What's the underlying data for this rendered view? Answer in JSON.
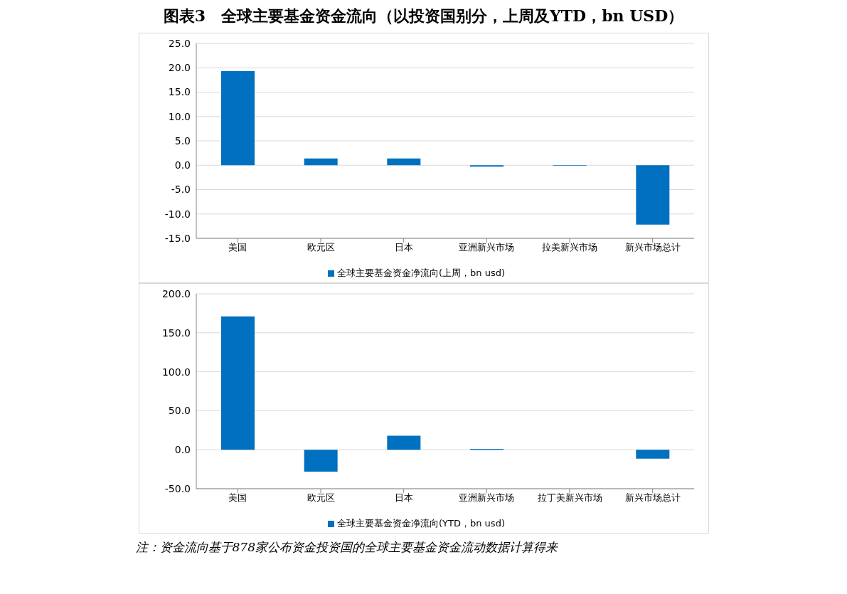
{
  "chart_data": [
    {
      "type": "bar",
      "title": "图表3　全球主要基金资金流向（以投资国别分，上周及YTD，bn USD）",
      "categories": [
        "美国",
        "欧元区",
        "日本",
        "亚洲新兴市场",
        "拉美新兴市场",
        "新兴市场总计"
      ],
      "series": [
        {
          "name": "全球主要基金资金净流向(上周，bn usd)",
          "color": "#0070c0",
          "values": [
            19.3,
            1.4,
            1.4,
            -0.3,
            -0.1,
            -12.2
          ]
        }
      ],
      "ylim": [
        -15,
        25
      ],
      "yticks": [
        {
          "value": -15,
          "label": "-15.0"
        },
        {
          "value": -10,
          "label": "-10.0"
        },
        {
          "value": -5,
          "label": "-5.0"
        },
        {
          "value": 0,
          "label": "0.0"
        },
        {
          "value": 5,
          "label": "5.0"
        },
        {
          "value": 10,
          "label": "10.0"
        },
        {
          "value": 15,
          "label": "15.0"
        },
        {
          "value": 20,
          "label": "20.0"
        },
        {
          "value": 25,
          "label": "25.0"
        }
      ],
      "grid": "y",
      "legend": "bottom"
    },
    {
      "type": "bar",
      "categories": [
        "美国",
        "欧元区",
        "日本",
        "亚洲新兴市场",
        "拉丁美新兴市场",
        "新兴市场总计"
      ],
      "series": [
        {
          "name": "全球主要基金资金净流向(YTD，bn usd)",
          "color": "#0070c0",
          "values": [
            171,
            -28,
            18,
            1,
            null,
            -11.5
          ]
        }
      ],
      "ylim": [
        -50,
        200
      ],
      "yticks": [
        {
          "value": -50,
          "label": "-50.0"
        },
        {
          "value": 0,
          "label": "0.0"
        },
        {
          "value": 50,
          "label": "50.0"
        },
        {
          "value": 100,
          "label": "100.0"
        },
        {
          "value": 150,
          "label": "150.0"
        },
        {
          "value": 200,
          "label": "200.0"
        }
      ],
      "grid": "y",
      "legend": "bottom",
      "annotations": [
        "注：资金流向基于878家公布资金投资国的全球主要基金资金流动数据计算得来"
      ]
    }
  ]
}
